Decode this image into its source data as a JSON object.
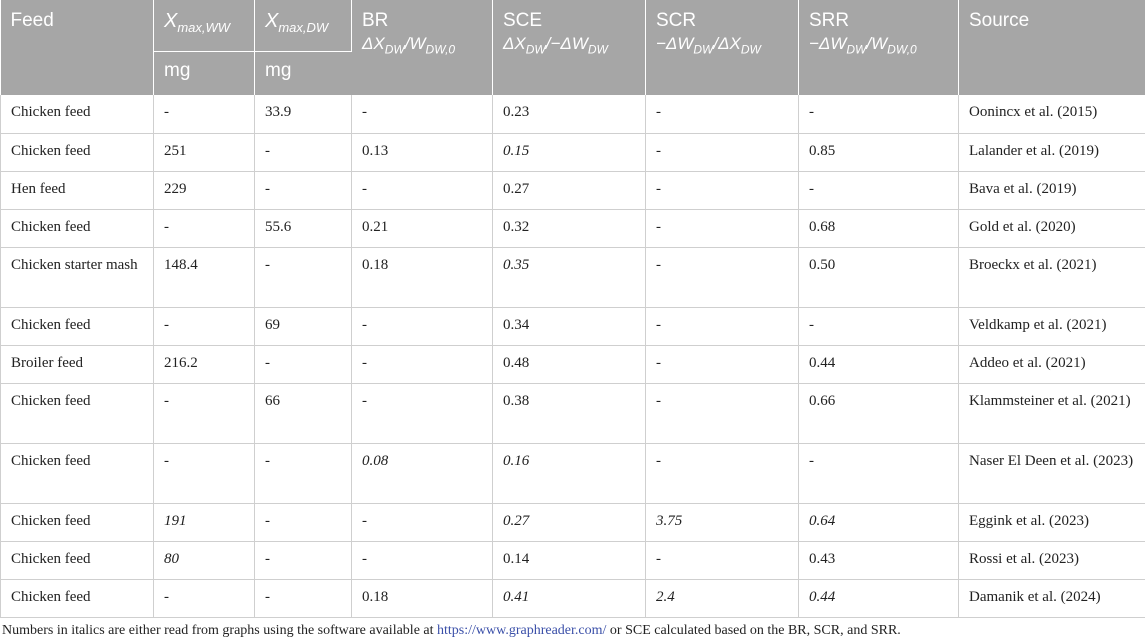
{
  "headers": {
    "feed": "Feed",
    "xww": {
      "main": "X",
      "sub": "max,WW",
      "unit": "mg"
    },
    "xdw": {
      "main": "X",
      "sub": "max,DW",
      "unit": "mg"
    },
    "br": {
      "label": "BR",
      "formula": "ΔX_DW/W_DW,0"
    },
    "sce": {
      "label": "SCE",
      "formula": "ΔX_DW/−ΔW_DW"
    },
    "scr": {
      "label": "SCR",
      "formula": "−ΔW_DW/ΔX_DW"
    },
    "srr": {
      "label": "SRR",
      "formula": "−ΔW_DW/W_DW,0"
    },
    "source": "Source"
  },
  "rows": [
    {
      "feed": "Chicken feed",
      "xww": "-",
      "xdw": "33.9",
      "br": "-",
      "sce": "0.23",
      "scr": "-",
      "srr": "-",
      "source": "Oonincx et al. (2015)",
      "italic": []
    },
    {
      "feed": "Chicken feed",
      "xww": "251",
      "xdw": "-",
      "br": "0.13",
      "sce": "0.15",
      "scr": "-",
      "srr": "0.85",
      "source": "Lalander et al. (2019)",
      "italic": [
        "sce"
      ]
    },
    {
      "feed": "Hen feed",
      "xww": "229",
      "xdw": "-",
      "br": "-",
      "sce": "0.27",
      "scr": "-",
      "srr": "-",
      "source": "Bava et al. (2019)",
      "italic": []
    },
    {
      "feed": "Chicken feed",
      "xww": "-",
      "xdw": "55.6",
      "br": "0.21",
      "sce": "0.32",
      "scr": "-",
      "srr": "0.68",
      "source": "Gold et al. (2020)",
      "italic": []
    },
    {
      "feed": "Chicken starter mash",
      "xww": "148.4",
      "xdw": "-",
      "br": "0.18",
      "sce": "0.35",
      "scr": "-",
      "srr": "0.50",
      "source": "Broeckx et al. (2021)",
      "italic": [
        "sce"
      ],
      "tall": true
    },
    {
      "feed": "Chicken feed",
      "xww": "-",
      "xdw": "69",
      "br": "-",
      "sce": "0.34",
      "scr": "-",
      "srr": "-",
      "source": "Veldkamp et al. (2021)",
      "italic": []
    },
    {
      "feed": "Broiler feed",
      "xww": "216.2",
      "xdw": "-",
      "br": "-",
      "sce": "0.48",
      "scr": "-",
      "srr": "0.44",
      "source": "Addeo et al. (2021)",
      "italic": []
    },
    {
      "feed": "Chicken feed",
      "xww": "-",
      "xdw": "66",
      "br": "-",
      "sce": "0.38",
      "scr": "-",
      "srr": "0.66",
      "source": "Klammsteiner et al. (2021)",
      "italic": [],
      "tall": true
    },
    {
      "feed": "Chicken feed",
      "xww": "-",
      "xdw": "-",
      "br": "0.08",
      "sce": "0.16",
      "scr": "-",
      "srr": "-",
      "source": "Naser El Deen et al. (2023)",
      "italic": [
        "br",
        "sce"
      ],
      "tall": true
    },
    {
      "feed": "Chicken feed",
      "xww": "191",
      "xdw": "-",
      "br": "-",
      "sce": "0.27",
      "scr": "3.75",
      "srr": "0.64",
      "source": "Eggink et al. (2023)",
      "italic": [
        "xww",
        "sce",
        "scr",
        "srr"
      ]
    },
    {
      "feed": "Chicken feed",
      "xww": "80",
      "xdw": "-",
      "br": "-",
      "sce": "0.14",
      "scr": "-",
      "srr": "0.43",
      "source": "Rossi et al. (2023)",
      "italic": [
        "xww"
      ]
    },
    {
      "feed": "Chicken feed",
      "xww": "-",
      "xdw": "-",
      "br": "0.18",
      "sce": "0.41",
      "scr": "2.4",
      "srr": "0.44",
      "source": "Damanik et al. (2024)",
      "italic": [
        "sce",
        "scr",
        "srr"
      ]
    }
  ],
  "footnote": {
    "before": "Numbers in italics are either read from graphs using the software available at ",
    "link": "https://www.graphreader.com/",
    "after": " or SCE calculated based on the BR, SCR, and SRR."
  }
}
